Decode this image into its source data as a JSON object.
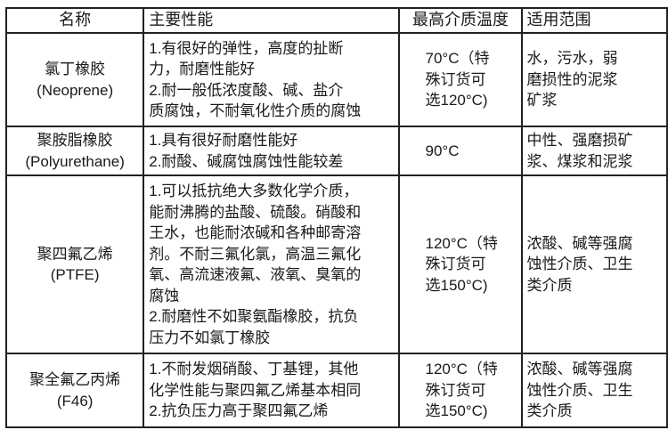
{
  "headers": [
    "名称",
    "主要性能",
    "最高介质温度",
    "适用范围"
  ],
  "rows": [
    {
      "name": [
        "氯丁橡胶",
        "(Neoprene)"
      ],
      "performance": [
        "1.有很好的弹性，高度的扯断",
        "力，耐磨性能好",
        "2.耐一般低浓度酸、碱、盐介",
        "质腐蚀，不耐氧化性介质的腐蚀"
      ],
      "temperature": [
        "70°C（特",
        "殊订货可",
        "选120°C)"
      ],
      "application": [
        "水，污水，弱",
        "磨损性的泥浆",
        "矿浆"
      ]
    },
    {
      "name": [
        "聚胺脂橡胶",
        "(Polyurethane)"
      ],
      "performance": [
        "1.具有很好耐磨性能好",
        "2.耐酸、碱腐蚀腐蚀性能较差"
      ],
      "temperature": [
        "90°C"
      ],
      "application": [
        "中性、强磨损矿",
        "浆、煤浆和泥浆"
      ]
    },
    {
      "name": [
        "聚四氟乙烯",
        "(PTFE)"
      ],
      "performance": [
        "1.可以抵抗绝大多数化学介质，",
        "能耐沸腾的盐酸、硫酸。硝酸和",
        "王水，也能耐浓碱和各种邮寄溶",
        "剂。不耐三氟化氯，高温三氟化",
        "氧、高流速液氟、液氧、臭氧的",
        "腐蚀",
        "2.耐磨性不如聚氨酯橡胶，抗负",
        "压力不如氯丁橡胶"
      ],
      "temperature": [
        "120°C（特",
        "殊订货可",
        "选150°C)"
      ],
      "application": [
        "浓酸、碱等强腐",
        "蚀性介质、卫生",
        "类介质"
      ]
    },
    {
      "name": [
        "聚全氟乙丙烯",
        "(F46)"
      ],
      "performance": [
        "1.不耐发烟硝酸、丁基锂，其他",
        "化学性能与聚四氟乙烯基本相同",
        "2.抗负压力高于聚四氟乙烯"
      ],
      "temperature": [
        "120°C（特",
        "殊订货可",
        "选150°C)"
      ],
      "application": [
        "浓酸、碱等强腐",
        "蚀性介质、卫生",
        "类介质"
      ]
    }
  ]
}
